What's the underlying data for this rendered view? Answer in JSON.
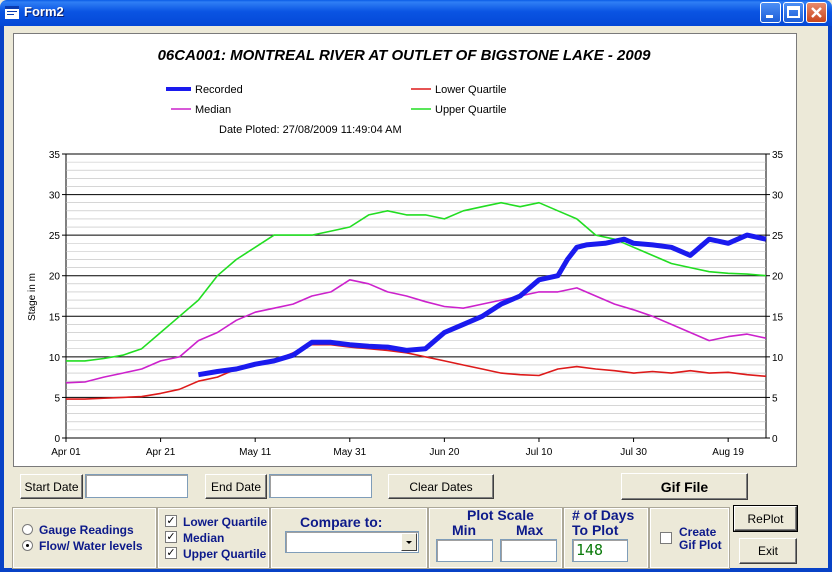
{
  "window": {
    "title": "Form2"
  },
  "chart": {
    "title": "06CA001:   MONTREAL RIVER AT OUTLET OF BIGSTONE LAKE - 2009",
    "date_plotted": "Date Ploted: 27/08/2009  11:49:04 AM",
    "legend": {
      "recorded": "Recorded",
      "median": "Median",
      "lower": "Lower Quartile",
      "upper": "Upper Quartile"
    },
    "ylabel": "Stage in m"
  },
  "chart_data": {
    "type": "line",
    "title": "06CA001:   MONTREAL RIVER AT OUTLET OF BIGSTONE LAKE - 2009",
    "xlabel": "",
    "ylabel": "Stage in m",
    "ylim": [
      0,
      35
    ],
    "yticks": [
      "0",
      "5",
      "10",
      "15",
      "20",
      "25",
      "30",
      "35"
    ],
    "xticks": [
      "Apr 01",
      "Apr 21",
      "May 11",
      "May 31",
      "Jun 20",
      "Jul 10",
      "Jul 30",
      "Aug 19"
    ],
    "xrange_days": [
      0,
      148
    ],
    "legend_position": "top",
    "grid": true,
    "series": [
      {
        "name": "Recorded",
        "color": "#1a1aee",
        "x": [
          28,
          32,
          36,
          40,
          44,
          48,
          52,
          56,
          60,
          64,
          68,
          72,
          76,
          80,
          84,
          88,
          92,
          96,
          100,
          104,
          106,
          108,
          110,
          114,
          118,
          120,
          124,
          128,
          132,
          136,
          140,
          144,
          148
        ],
        "y": [
          7.8,
          8.2,
          8.5,
          9.1,
          9.5,
          10.2,
          11.8,
          11.8,
          11.5,
          11.3,
          11.2,
          10.8,
          11.0,
          13.0,
          14.0,
          15.0,
          16.5,
          17.5,
          19.5,
          20.0,
          22.0,
          23.5,
          23.8,
          24.0,
          24.5,
          24.0,
          23.8,
          23.5,
          22.5,
          24.5,
          24.0,
          25.0,
          24.5
        ]
      },
      {
        "name": "Median",
        "color": "#cc22cc",
        "x": [
          0,
          4,
          8,
          12,
          16,
          20,
          24,
          28,
          32,
          36,
          40,
          44,
          48,
          52,
          56,
          60,
          64,
          68,
          72,
          76,
          80,
          84,
          88,
          92,
          96,
          100,
          104,
          108,
          112,
          116,
          120,
          124,
          128,
          132,
          136,
          140,
          144,
          148
        ],
        "y": [
          6.8,
          6.9,
          7.5,
          8.0,
          8.5,
          9.5,
          10.0,
          12.0,
          13.0,
          14.5,
          15.5,
          16.0,
          16.5,
          17.5,
          18.0,
          19.5,
          19.0,
          18.0,
          17.5,
          16.8,
          16.2,
          16.0,
          16.5,
          17.0,
          17.5,
          18.0,
          18.0,
          18.5,
          17.5,
          16.5,
          15.8,
          15.0,
          14.0,
          13.0,
          12.0,
          12.5,
          12.8,
          12.3
        ]
      },
      {
        "name": "Lower Quartile",
        "color": "#dd1a1a",
        "x": [
          0,
          4,
          8,
          12,
          16,
          20,
          24,
          28,
          32,
          36,
          40,
          44,
          48,
          52,
          56,
          60,
          64,
          68,
          72,
          76,
          80,
          84,
          88,
          92,
          96,
          100,
          104,
          108,
          112,
          116,
          120,
          124,
          128,
          132,
          136,
          140,
          144,
          148
        ],
        "y": [
          4.8,
          4.8,
          4.9,
          5.0,
          5.1,
          5.5,
          6.0,
          7.0,
          7.5,
          8.5,
          9.0,
          9.5,
          10.5,
          11.5,
          11.5,
          11.2,
          11.0,
          10.8,
          10.5,
          10.0,
          9.5,
          9.0,
          8.5,
          8.0,
          7.8,
          7.7,
          8.5,
          8.8,
          8.5,
          8.3,
          8.0,
          8.2,
          8.0,
          8.3,
          8.0,
          8.1,
          7.8,
          7.6
        ]
      },
      {
        "name": "Upper Quartile",
        "color": "#22dd22",
        "x": [
          0,
          4,
          8,
          12,
          16,
          20,
          24,
          28,
          32,
          36,
          40,
          44,
          48,
          52,
          56,
          60,
          64,
          68,
          72,
          76,
          80,
          84,
          88,
          92,
          96,
          100,
          104,
          108,
          112,
          116,
          120,
          124,
          128,
          132,
          136,
          140,
          144,
          148
        ],
        "y": [
          9.5,
          9.5,
          9.8,
          10.2,
          11.0,
          13.0,
          15.0,
          17.0,
          20.0,
          22.0,
          23.5,
          25.0,
          25.0,
          25.0,
          25.5,
          26.0,
          27.5,
          28.0,
          27.5,
          27.5,
          27.0,
          28.0,
          28.5,
          29.0,
          28.5,
          29.0,
          28.0,
          27.0,
          25.0,
          24.5,
          23.5,
          22.5,
          21.5,
          21.0,
          20.5,
          20.3,
          20.2,
          20.0
        ]
      }
    ]
  },
  "controls": {
    "start_date_label": "Start Date",
    "start_date_value": "",
    "end_date_label": "End Date",
    "end_date_value": "",
    "clear_dates_label": "Clear Dates",
    "gif_file_label": "Gif File",
    "gauge_readings_label": "Gauge Readings",
    "flow_levels_label": "Flow/ Water levels",
    "lower_quartile_label": "Lower Quartile",
    "median_label": "Median",
    "upper_quartile_label": "Upper Quartile",
    "compare_to_label": "Compare to:",
    "compare_to_value": "",
    "plot_scale_label": "Plot Scale",
    "min_label": "Min",
    "max_label": "Max",
    "min_value": "",
    "max_value": "",
    "days_label_1": "# of Days",
    "days_label_2": "To Plot",
    "days_value": "148",
    "create_gif_label_1": "Create",
    "create_gif_label_2": "Gif Plot",
    "replot_label": "RePlot",
    "exit_label": "Exit",
    "flow_selected": true,
    "lower_checked": true,
    "median_checked": true,
    "upper_checked": true,
    "create_gif_checked": false
  }
}
